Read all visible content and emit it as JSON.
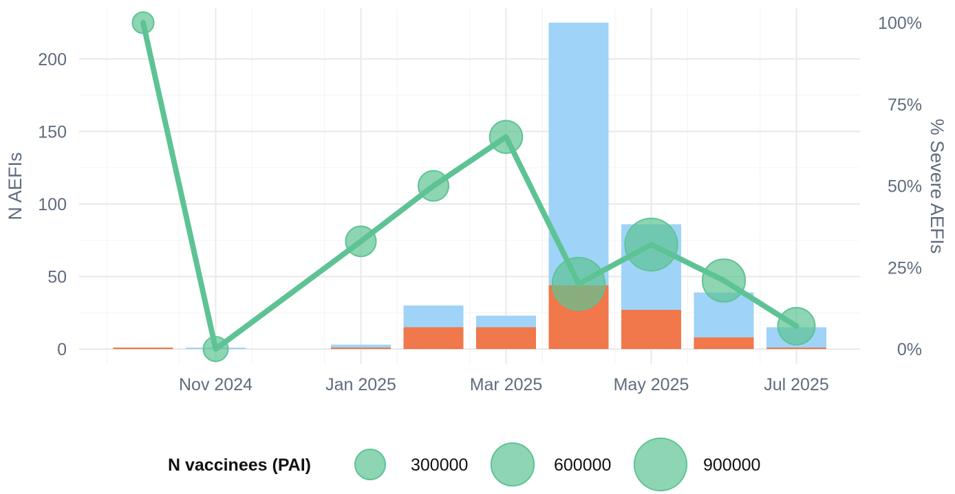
{
  "chart_data": {
    "type": "bar",
    "x_dates": [
      "2024-10",
      "2024-11",
      "2024-12",
      "2025-01",
      "2025-02",
      "2025-03",
      "2025-04",
      "2025-05",
      "2025-06",
      "2025-07"
    ],
    "x_tick_labels": [
      {
        "date": "2024-11",
        "label": "Nov 2024"
      },
      {
        "date": "2025-01",
        "label": "Jan 2025"
      },
      {
        "date": "2025-03",
        "label": "Mar 2025"
      },
      {
        "date": "2025-05",
        "label": "May 2025"
      },
      {
        "date": "2025-07",
        "label": "Jul 2025"
      }
    ],
    "ylabel": "N AEFIs",
    "ylim": [
      0,
      225
    ],
    "y_ticks": [
      0,
      50,
      100,
      150,
      200
    ],
    "y2label": "% Severe AEFIs",
    "y2lim": [
      0,
      100
    ],
    "y2_ticks": [
      {
        "value": 0,
        "label": "0%"
      },
      {
        "value": 25,
        "label": "25%"
      },
      {
        "value": 50,
        "label": "50%"
      },
      {
        "value": 75,
        "label": "75%"
      },
      {
        "value": 100,
        "label": "100%"
      }
    ],
    "grid": true,
    "series": [
      {
        "type": "bar",
        "role": "total",
        "color": "#9fd3f7",
        "values": [
          1,
          1,
          0,
          3,
          30,
          23,
          225,
          86,
          39,
          15
        ]
      },
      {
        "type": "bar",
        "role": "severe",
        "color": "#f0784a",
        "values": [
          1,
          0,
          0,
          1,
          15,
          15,
          44,
          27,
          8,
          1
        ]
      },
      {
        "type": "line",
        "role": "pct_severe",
        "axis": "right",
        "color": "#5ec394",
        "values": [
          100,
          0,
          null,
          33,
          50,
          65,
          20,
          32,
          21,
          7
        ]
      }
    ],
    "point_sizes": [
      150000,
      200000,
      null,
      300000,
      300000,
      350000,
      900000,
      900000,
      600000,
      450000
    ],
    "legend": {
      "position": "bottom",
      "title": "N vaccinees (PAI)",
      "entries": [
        {
          "value": 300000,
          "label": "300000"
        },
        {
          "value": 600000,
          "label": "600000"
        },
        {
          "value": 900000,
          "label": "900000"
        }
      ]
    }
  }
}
